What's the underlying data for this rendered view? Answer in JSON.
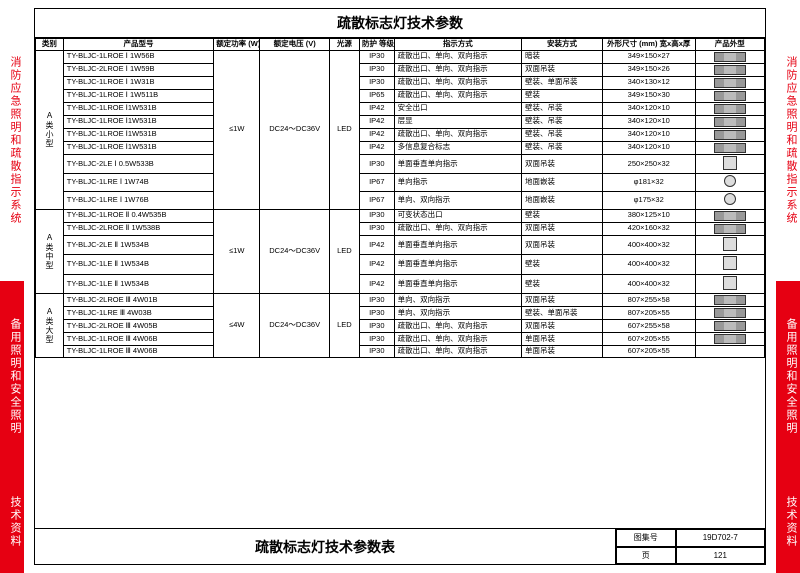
{
  "side": {
    "block1": "消防应急照明和疏散指示系统",
    "block2": "备用照明和安全照明",
    "block3": "技术资料"
  },
  "title": "疏散标志灯技术参数",
  "footer_title": "疏散标志灯技术参数表",
  "footer": {
    "atlas_label": "图集号",
    "atlas_value": "19D702-7",
    "page_label": "页",
    "page_value": "121"
  },
  "columns": {
    "cat": "类别",
    "model": "产品型号",
    "power": "额定功率\n(W)",
    "voltage": "额定电压\n(V)",
    "light": "光源",
    "ip": "防护\n等级",
    "indicate": "指示方式",
    "install": "安装方式",
    "dim": "外形尺寸 (mm)\n宽x高x厚",
    "shape": "产品外型"
  },
  "groups": [
    {
      "name": "A类小型",
      "power": "≤1W",
      "voltage": "DC24～DC36V",
      "light": "LED",
      "rows": [
        {
          "model": "TY-BLJC-1LROE Ⅰ 1W56B",
          "ip": "IP30",
          "ind": "疏散出口、单向、双向指示",
          "ins": "暗装",
          "dim": "349×150×27",
          "ico": "a"
        },
        {
          "model": "TY-BLJC-2LROE Ⅰ 1W59B",
          "ip": "IP30",
          "ind": "疏散出口、单向、双向指示",
          "ins": "双面吊装",
          "dim": "349×150×26",
          "ico": "a"
        },
        {
          "model": "TY-BLJC-1LROE Ⅰ 1W31B",
          "ip": "IP30",
          "ind": "疏散出口、单向、双向指示",
          "ins": "壁装、单面吊装",
          "dim": "340×130×12",
          "ico": "a"
        },
        {
          "model": "TY-BLJC-1LROE Ⅰ 1W511B",
          "ip": "IP65",
          "ind": "疏散出口、单向、双向指示",
          "ins": "壁装",
          "dim": "349×150×30",
          "ico": "a"
        },
        {
          "model": "TY-BLJC-1LROE Ⅰ1W531B",
          "ip": "IP42",
          "ind": "安全出口",
          "ins": "壁装、吊装",
          "dim": "340×120×10",
          "ico": "b"
        },
        {
          "model": "TY-BLJC-1LROE Ⅰ1W531B",
          "ip": "IP42",
          "ind": "层显",
          "ins": "壁装、吊装",
          "dim": "340×120×10",
          "ico": "c"
        },
        {
          "model": "TY-BLJC-1LROE Ⅰ1W531B",
          "ip": "IP42",
          "ind": "疏散出口、单向、双向指示",
          "ins": "壁装、吊装",
          "dim": "340×120×10",
          "ico": "a"
        },
        {
          "model": "TY-BLJC-1LROE Ⅰ1W531B",
          "ip": "IP42",
          "ind": "多信息复合标志",
          "ins": "壁装、吊装",
          "dim": "340×120×10",
          "ico": "d"
        },
        {
          "model": "TY-BLJC-2LE Ⅰ 0.5W533B",
          "ip": "IP30",
          "ind": "单面垂直单向指示",
          "ins": "双面吊装",
          "dim": "250×250×32",
          "ico": "s"
        },
        {
          "model": "TY-BLJC-1LRE Ⅰ 1W74B",
          "ip": "IP67",
          "ind": "单向指示",
          "ins": "地面嵌装",
          "dim": "φ181×32",
          "ico": "o"
        },
        {
          "model": "TY-BLJC-1LRE Ⅰ 1W76B",
          "ip": "IP67",
          "ind": "单向、双向指示",
          "ins": "地面嵌装",
          "dim": "φ175×32",
          "ico": "o"
        }
      ]
    },
    {
      "name": "A类中型",
      "power": "≤1W",
      "voltage": "DC24～DC36V",
      "light": "LED",
      "rows": [
        {
          "model": "TY-BLJC-1LROE Ⅱ 0.4W535B",
          "ip": "IP30",
          "ind": "可变状态出口",
          "ins": "壁装",
          "dim": "380×125×10",
          "ico": "e"
        },
        {
          "model": "TY-BLJC-2LROE Ⅱ 1W538B",
          "ip": "IP30",
          "ind": "疏散出口、单向、双向指示",
          "ins": "双面吊装",
          "dim": "420×160×32",
          "ico": "a"
        },
        {
          "model": "TY-BLJC-2LE Ⅱ 1W534B",
          "ip": "IP42",
          "ind": "单面垂直单向指示",
          "ins": "双面吊装",
          "dim": "400×400×32",
          "ico": "s"
        },
        {
          "model": "TY-BLJC-1LE Ⅱ 1W534B",
          "ip": "IP42",
          "ind": "单面垂直单向指示",
          "ins": "壁装",
          "dim": "400×400×32",
          "ico": "s"
        },
        {
          "model": "TY-BLJC-1LE Ⅱ 1W534B",
          "ip": "IP42",
          "ind": "单面垂直单向指示",
          "ins": "壁装",
          "dim": "400×400×32",
          "ico": "s"
        }
      ]
    },
    {
      "name": "A类大型",
      "power": "≤4W",
      "voltage": "DC24～DC36V",
      "light": "LED",
      "rows": [
        {
          "model": "TY-BLJC-2LROE Ⅲ 4W01B",
          "ip": "IP30",
          "ind": "单向、双向指示",
          "ins": "双面吊装",
          "dim": "807×255×58",
          "ico": "f"
        },
        {
          "model": "TY-BLJC-1LRE Ⅲ 4W03B",
          "ip": "IP30",
          "ind": "单向、双向指示",
          "ins": "壁装、单面吊装",
          "dim": "807×205×55",
          "ico": "f"
        },
        {
          "model": "TY-BLJC-2LROE Ⅲ 4W05B",
          "ip": "IP30",
          "ind": "疏散出口、单向、双向指示",
          "ins": "双面吊装",
          "dim": "607×255×58",
          "ico": "f"
        },
        {
          "model": "TY-BLJC-1LROE Ⅲ 4W06B",
          "ip": "IP30",
          "ind": "疏散出口、单向、双向指示",
          "ins": "单面吊装",
          "dim": "607×205×55",
          "ico": "f"
        },
        {
          "model": "TY-BLJC-1LROE Ⅲ 4W06B",
          "ip": "IP30",
          "ind": "疏散出口、单向、双向指示",
          "ins": "单面吊装",
          "dim": "607×205×55",
          "ico": ""
        }
      ]
    }
  ]
}
